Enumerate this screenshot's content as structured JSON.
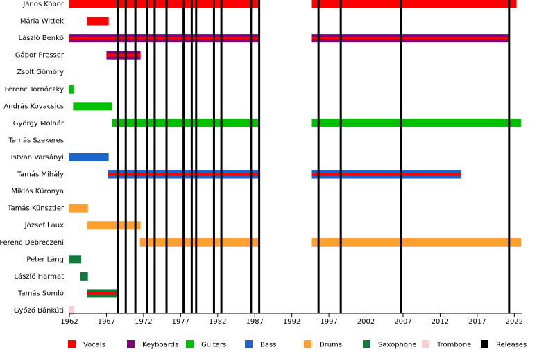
{
  "chart_data": {
    "type": "timeline",
    "xlim": [
      1962,
      2023
    ],
    "xticks": [
      1962,
      1967,
      1972,
      1977,
      1982,
      1987,
      1992,
      1997,
      2002,
      2007,
      2012,
      2017,
      2022
    ],
    "roles": [
      {
        "name": "Vocals",
        "color": "#ff0000"
      },
      {
        "name": "Keyboards",
        "color": "#800080"
      },
      {
        "name": "Guitars",
        "color": "#00c000"
      },
      {
        "name": "Bass",
        "color": "#1a66cc"
      },
      {
        "name": "Drums",
        "color": "#ffa030"
      },
      {
        "name": "Saxophone",
        "color": "#117a3a"
      },
      {
        "name": "Trombone",
        "color": "#f8d0d0"
      }
    ],
    "releases_label": "Releases",
    "releases_color": "#000000",
    "releases": [
      1968.5,
      1969.6,
      1970.9,
      1972.5,
      1973.5,
      1975.1,
      1977.4,
      1978.5,
      1979.1,
      1981.5,
      1982.5,
      1986.5,
      1987.6,
      1995.6,
      1998.6,
      2006.7,
      2021.3
    ],
    "members": [
      {
        "name": "János Kóbor",
        "role": "Vocals",
        "periods": [
          {
            "start": 1962,
            "end": 1987.7
          },
          {
            "start": 1994.7,
            "end": 2022.3
          }
        ]
      },
      {
        "name": "Mária Wittek",
        "role": "Vocals",
        "periods": [
          {
            "start": 1964.4,
            "end": 1967.3
          }
        ]
      },
      {
        "name": "László Benkő",
        "role": "Keyboards",
        "second_role": "Vocals",
        "periods": [
          {
            "start": 1962,
            "end": 1987.7
          },
          {
            "start": 1994.7,
            "end": 2021.3
          }
        ]
      },
      {
        "name": "Gábor Presser",
        "role": "Keyboards",
        "second_role": "Vocals",
        "periods": [
          {
            "start": 1967,
            "end": 1971.6
          }
        ]
      },
      {
        "name": "Zsolt Gömöry",
        "role": "Keyboards",
        "periods": []
      },
      {
        "name": "Ferenc Tornóczky",
        "role": "Guitars",
        "periods": [
          {
            "start": 1962,
            "end": 1962.6
          }
        ]
      },
      {
        "name": "András Kovacsics",
        "role": "Guitars",
        "periods": [
          {
            "start": 1962.5,
            "end": 1967.8
          }
        ]
      },
      {
        "name": "György Molnár",
        "role": "Guitars",
        "periods": [
          {
            "start": 1967.7,
            "end": 1987.7
          },
          {
            "start": 1994.7,
            "end": 2022.9
          }
        ]
      },
      {
        "name": "Tamás Szekeres",
        "role": "Guitars",
        "periods": []
      },
      {
        "name": "István Varsányi",
        "role": "Bass",
        "periods": [
          {
            "start": 1962,
            "end": 1967.3
          }
        ]
      },
      {
        "name": "Tamás Mihály",
        "role": "Bass",
        "second_role": "Vocals",
        "periods": [
          {
            "start": 1967.2,
            "end": 1987.7
          },
          {
            "start": 1994.7,
            "end": 2014.8
          }
        ]
      },
      {
        "name": "Miklós Kűronya",
        "role": "Bass",
        "periods": []
      },
      {
        "name": "Tamás Künsztler",
        "role": "Drums",
        "periods": [
          {
            "start": 1962,
            "end": 1964.5
          }
        ]
      },
      {
        "name": "József Laux",
        "role": "Drums",
        "periods": [
          {
            "start": 1964.4,
            "end": 1971.6
          }
        ]
      },
      {
        "name": "Ferenc Debreczeni",
        "role": "Drums",
        "periods": [
          {
            "start": 1971.5,
            "end": 1987.7
          },
          {
            "start": 1994.7,
            "end": 2022.9
          }
        ]
      },
      {
        "name": "Péter Láng",
        "role": "Saxophone",
        "periods": [
          {
            "start": 1962,
            "end": 1963.6
          }
        ]
      },
      {
        "name": "László Harmat",
        "role": "Saxophone",
        "periods": [
          {
            "start": 1963.5,
            "end": 1964.5
          }
        ]
      },
      {
        "name": "Tamás Somló",
        "role": "Saxophone",
        "second_role": "Vocals",
        "periods": [
          {
            "start": 1964.4,
            "end": 1968.6
          }
        ]
      },
      {
        "name": "Győző Bánkúti",
        "role": "Trombone",
        "periods": [
          {
            "start": 1962,
            "end": 1962.6
          }
        ]
      }
    ]
  }
}
